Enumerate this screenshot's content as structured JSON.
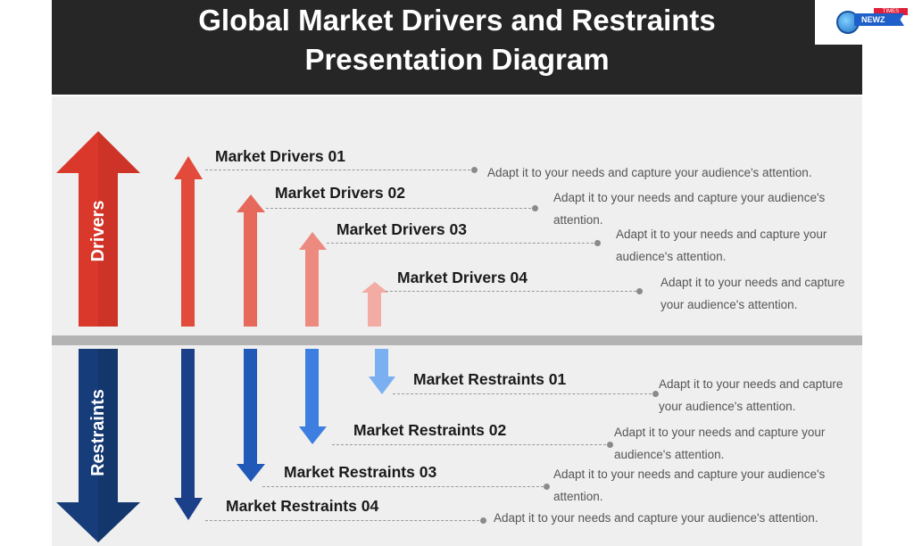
{
  "header": {
    "title_line1": "Global Market Drivers and Restraints",
    "title_line2": "Presentation Diagram"
  },
  "logo": {
    "icon": "globe-icon",
    "text_top": "TIMES",
    "text_main": "NEWZ"
  },
  "sections": {
    "drivers_label": "Drivers",
    "restraints_label": "Restraints"
  },
  "colors": {
    "drivers_main": "#d9382b",
    "drivers": [
      "#e24a3b",
      "#e6695c",
      "#ec8a80",
      "#f2aca4"
    ],
    "restraints_main": "#163c79",
    "restraints": [
      "#1b3f88",
      "#2059b8",
      "#3d7fe0",
      "#7ab0f1"
    ]
  },
  "drivers": [
    {
      "title": "Market Drivers 01",
      "text": "Adapt it to your needs and capture your audience's attention."
    },
    {
      "title": "Market Drivers 02",
      "text": "Adapt it to your needs and capture your audience's attention."
    },
    {
      "title": "Market Drivers 03",
      "text": "Adapt it to your needs and capture your audience's attention."
    },
    {
      "title": "Market Drivers 04",
      "text": "Adapt it to your needs and capture your audience's attention."
    }
  ],
  "restraints": [
    {
      "title": "Market Restraints 01",
      "text": "Adapt it to your needs and capture your audience's attention."
    },
    {
      "title": "Market Restraints 02",
      "text": "Adapt it to your needs and capture your audience's attention."
    },
    {
      "title": "Market Restraints 03",
      "text": "Adapt it to your needs and capture your audience's attention."
    },
    {
      "title": "Market Restraints 04",
      "text": "Adapt it to your needs and capture your audience's attention."
    }
  ]
}
